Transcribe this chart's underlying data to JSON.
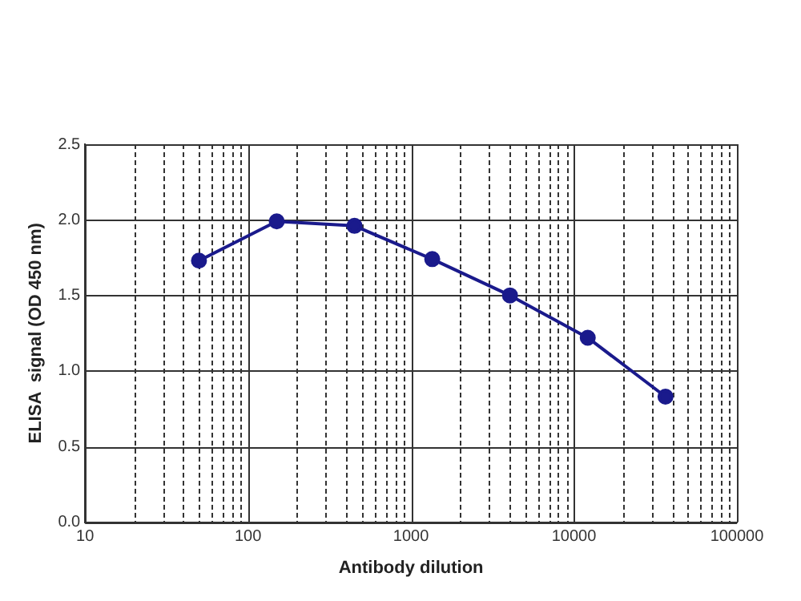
{
  "chart_data": {
    "type": "line",
    "xlabel": "Antibody dilution",
    "ylabel": "ELISA  signal (OD 450 nm)",
    "x": [
      50,
      150,
      450,
      1350,
      4050,
      12150,
      36450
    ],
    "series": [
      {
        "color": "#1a1a8c",
        "values": [
          1.73,
          1.99,
          1.96,
          1.74,
          1.5,
          1.22,
          0.83
        ]
      }
    ],
    "log": "x",
    "xlim": [
      10,
      100000
    ],
    "xticks": [
      10,
      {
        "value": 20,
        "label": null
      },
      {
        "value": 30,
        "label": null
      },
      {
        "value": 40,
        "label": null
      },
      {
        "value": 50,
        "label": null
      },
      {
        "value": 60,
        "label": null
      },
      {
        "value": 70,
        "label": null
      },
      {
        "value": 80,
        "label": null
      },
      {
        "value": 90,
        "label": null
      },
      100,
      {
        "value": 200,
        "label": null
      },
      {
        "value": 300,
        "label": null
      },
      {
        "value": 400,
        "label": null
      },
      {
        "value": 500,
        "label": null
      },
      {
        "value": 600,
        "label": null
      },
      {
        "value": 700,
        "label": null
      },
      {
        "value": 800,
        "label": null
      },
      {
        "value": 900,
        "label": null
      },
      1000,
      {
        "value": 2000,
        "label": null
      },
      {
        "value": 3000,
        "label": null
      },
      {
        "value": 4000,
        "label": null
      },
      {
        "value": 5000,
        "label": null
      },
      {
        "value": 6000,
        "label": null
      },
      {
        "value": 7000,
        "label": null
      },
      {
        "value": 8000,
        "label": null
      },
      {
        "value": 9000,
        "label": null
      },
      10000,
      {
        "value": 20000,
        "label": null
      },
      {
        "value": 30000,
        "label": null
      },
      {
        "value": 40000,
        "label": null
      },
      {
        "value": 50000,
        "label": null
      },
      {
        "value": 60000,
        "label": null
      },
      {
        "value": 70000,
        "label": null
      },
      {
        "value": 80000,
        "label": null
      },
      {
        "value": 90000,
        "label": null
      },
      100000
    ],
    "ylim": [
      0,
      2.5
    ],
    "yticks": [
      {
        "value": 0,
        "label": "0.0"
      },
      {
        "value": 0.5,
        "label": "0.5"
      },
      {
        "value": 1,
        "label": "1.0"
      },
      {
        "value": 1.5,
        "label": "1.5"
      },
      {
        "value": 2,
        "label": "2.0"
      },
      {
        "value": 2.5,
        "label": "2.5"
      }
    ],
    "grid": true,
    "legend": false,
    "marker": "circle",
    "line_style": "solid"
  }
}
